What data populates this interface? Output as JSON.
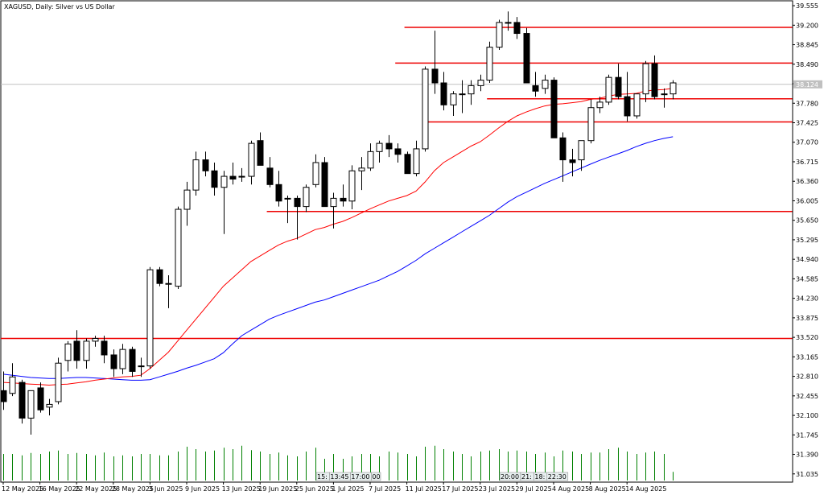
{
  "chart_data": {
    "type": "candlestick",
    "title": "XAGUSD, Daily:  Silver vs US Dollar",
    "ylim": [
      30.9,
      39.6
    ],
    "grid": false,
    "colors": {
      "up_body": "#ffffff",
      "down_body": "#000000",
      "wick": "#000000",
      "ma_fast": "#ff0000",
      "ma_slow": "#0000ff",
      "level_line": "#ee0000",
      "volume": "#008000",
      "current_price_line": "#c0c0c0"
    },
    "y_ticks": [
      "39.555",
      "39.200",
      "38.845",
      "38.490",
      "38.135",
      "37.780",
      "37.425",
      "37.070",
      "36.715",
      "36.360",
      "36.005",
      "35.650",
      "35.295",
      "34.940",
      "34.585",
      "34.230",
      "33.875",
      "33.520",
      "33.165",
      "32.810",
      "32.455",
      "32.100",
      "31.745",
      "31.390",
      "31.035"
    ],
    "current_price_label": "38.124",
    "x_labels": [
      "12 May 2025",
      "16 May 2025",
      "22 May 2025",
      "28 May 2025",
      "3 Jun 2025",
      "9 Jun 2025",
      "13 Jun 2025",
      "19 Jun 2025",
      "25 Jun 2025",
      "1 Jul 2025",
      "7 Jul 2025",
      "11 Jul 2025",
      "17 Jul 2025",
      "23 Jul 2025",
      "29 Jul 2025",
      "4 Aug 2025",
      "8 Aug 2025",
      "14 Aug 2025"
    ],
    "x_label_index": [
      0,
      4,
      8,
      12,
      16,
      20,
      24,
      28,
      32,
      36,
      40,
      44,
      48,
      52,
      56,
      60,
      64,
      68
    ],
    "time_markers": [
      {
        "index": 35,
        "labels": [
          "15:",
          "13:45",
          "17:00",
          "00"
        ]
      },
      {
        "index": 55,
        "labels": [
          "20:00",
          "21:",
          "18:",
          "22:30"
        ]
      }
    ],
    "candles": [
      {
        "o": 32.55,
        "h": 32.9,
        "l": 32.2,
        "c": 32.35
      },
      {
        "o": 32.5,
        "h": 33.05,
        "l": 32.45,
        "c": 32.8
      },
      {
        "o": 32.7,
        "h": 32.75,
        "l": 31.95,
        "c": 32.05
      },
      {
        "o": 32.05,
        "h": 32.55,
        "l": 31.75,
        "c": 32.55
      },
      {
        "o": 32.6,
        "h": 32.7,
        "l": 32.15,
        "c": 32.2
      },
      {
        "o": 32.25,
        "h": 32.4,
        "l": 32.1,
        "c": 32.3
      },
      {
        "o": 32.35,
        "h": 33.15,
        "l": 32.3,
        "c": 33.05
      },
      {
        "o": 33.1,
        "h": 33.45,
        "l": 32.9,
        "c": 33.4
      },
      {
        "o": 33.45,
        "h": 33.65,
        "l": 32.95,
        "c": 33.1
      },
      {
        "o": 33.1,
        "h": 33.5,
        "l": 32.95,
        "c": 33.45
      },
      {
        "o": 33.45,
        "h": 33.55,
        "l": 33.35,
        "c": 33.5
      },
      {
        "o": 33.45,
        "h": 33.55,
        "l": 33.05,
        "c": 33.2
      },
      {
        "o": 33.2,
        "h": 33.3,
        "l": 32.8,
        "c": 32.95
      },
      {
        "o": 32.95,
        "h": 33.4,
        "l": 32.85,
        "c": 33.3
      },
      {
        "o": 33.3,
        "h": 33.35,
        "l": 32.8,
        "c": 32.9
      },
      {
        "o": 33.0,
        "h": 33.15,
        "l": 32.8,
        "c": 33.0
      },
      {
        "o": 33.0,
        "h": 34.8,
        "l": 32.95,
        "c": 34.75
      },
      {
        "o": 34.75,
        "h": 34.8,
        "l": 34.45,
        "c": 34.5
      },
      {
        "o": 34.5,
        "h": 34.65,
        "l": 34.05,
        "c": 34.5
      },
      {
        "o": 34.45,
        "h": 35.9,
        "l": 34.4,
        "c": 35.85
      },
      {
        "o": 35.85,
        "h": 36.35,
        "l": 35.55,
        "c": 36.2
      },
      {
        "o": 36.2,
        "h": 36.9,
        "l": 36.1,
        "c": 36.75
      },
      {
        "o": 36.75,
        "h": 36.9,
        "l": 36.45,
        "c": 36.55
      },
      {
        "o": 36.55,
        "h": 36.7,
        "l": 36.1,
        "c": 36.25
      },
      {
        "o": 36.25,
        "h": 36.55,
        "l": 35.4,
        "c": 36.45
      },
      {
        "o": 36.45,
        "h": 36.7,
        "l": 36.3,
        "c": 36.4
      },
      {
        "o": 36.45,
        "h": 36.6,
        "l": 36.35,
        "c": 36.45
      },
      {
        "o": 36.45,
        "h": 37.1,
        "l": 36.3,
        "c": 37.05
      },
      {
        "o": 37.1,
        "h": 37.25,
        "l": 36.65,
        "c": 36.65
      },
      {
        "o": 36.6,
        "h": 36.8,
        "l": 36.25,
        "c": 36.3
      },
      {
        "o": 36.3,
        "h": 36.55,
        "l": 35.9,
        "c": 36.0
      },
      {
        "o": 36.05,
        "h": 36.1,
        "l": 35.6,
        "c": 36.05
      },
      {
        "o": 36.05,
        "h": 36.1,
        "l": 35.3,
        "c": 35.9
      },
      {
        "o": 35.9,
        "h": 36.3,
        "l": 35.8,
        "c": 36.25
      },
      {
        "o": 36.3,
        "h": 36.85,
        "l": 36.25,
        "c": 36.7
      },
      {
        "o": 36.7,
        "h": 36.8,
        "l": 35.9,
        "c": 35.9
      },
      {
        "o": 35.9,
        "h": 36.15,
        "l": 35.5,
        "c": 36.05
      },
      {
        "o": 36.05,
        "h": 36.3,
        "l": 35.9,
        "c": 36.0
      },
      {
        "o": 36.0,
        "h": 36.65,
        "l": 35.85,
        "c": 36.55
      },
      {
        "o": 36.55,
        "h": 36.8,
        "l": 36.2,
        "c": 36.6
      },
      {
        "o": 36.6,
        "h": 37.05,
        "l": 36.55,
        "c": 36.9
      },
      {
        "o": 36.9,
        "h": 37.1,
        "l": 36.7,
        "c": 37.05
      },
      {
        "o": 37.05,
        "h": 37.2,
        "l": 36.8,
        "c": 36.95
      },
      {
        "o": 36.95,
        "h": 37.05,
        "l": 36.7,
        "c": 36.85
      },
      {
        "o": 36.85,
        "h": 36.9,
        "l": 36.5,
        "c": 36.5
      },
      {
        "o": 36.5,
        "h": 37.1,
        "l": 36.45,
        "c": 36.95
      },
      {
        "o": 36.95,
        "h": 38.45,
        "l": 36.9,
        "c": 38.4
      },
      {
        "o": 38.4,
        "h": 39.1,
        "l": 37.95,
        "c": 38.15
      },
      {
        "o": 38.15,
        "h": 38.35,
        "l": 37.65,
        "c": 37.75
      },
      {
        "o": 37.75,
        "h": 38.0,
        "l": 37.55,
        "c": 37.95
      },
      {
        "o": 37.95,
        "h": 38.2,
        "l": 37.6,
        "c": 37.95
      },
      {
        "o": 37.95,
        "h": 38.2,
        "l": 37.75,
        "c": 38.1
      },
      {
        "o": 38.1,
        "h": 38.3,
        "l": 38.0,
        "c": 38.2
      },
      {
        "o": 38.2,
        "h": 38.9,
        "l": 38.15,
        "c": 38.8
      },
      {
        "o": 38.8,
        "h": 39.3,
        "l": 38.75,
        "c": 39.25
      },
      {
        "o": 39.25,
        "h": 39.45,
        "l": 39.1,
        "c": 39.25
      },
      {
        "o": 39.25,
        "h": 39.35,
        "l": 38.95,
        "c": 39.05
      },
      {
        "o": 39.05,
        "h": 39.15,
        "l": 38.15,
        "c": 38.15
      },
      {
        "o": 38.1,
        "h": 38.35,
        "l": 37.9,
        "c": 38.0
      },
      {
        "o": 38.05,
        "h": 38.3,
        "l": 37.95,
        "c": 38.2
      },
      {
        "o": 38.2,
        "h": 38.25,
        "l": 37.15,
        "c": 37.15
      },
      {
        "o": 37.15,
        "h": 37.25,
        "l": 36.35,
        "c": 36.75
      },
      {
        "o": 36.75,
        "h": 36.95,
        "l": 36.45,
        "c": 36.7
      },
      {
        "o": 36.75,
        "h": 37.1,
        "l": 36.55,
        "c": 37.1
      },
      {
        "o": 37.1,
        "h": 37.85,
        "l": 37.05,
        "c": 37.7
      },
      {
        "o": 37.7,
        "h": 37.9,
        "l": 37.6,
        "c": 37.8
      },
      {
        "o": 37.8,
        "h": 38.3,
        "l": 37.75,
        "c": 38.25
      },
      {
        "o": 38.25,
        "h": 38.5,
        "l": 37.85,
        "c": 37.9
      },
      {
        "o": 37.9,
        "h": 38.35,
        "l": 37.45,
        "c": 37.55
      },
      {
        "o": 37.55,
        "h": 37.95,
        "l": 37.5,
        "c": 37.95
      },
      {
        "o": 37.95,
        "h": 38.55,
        "l": 37.8,
        "c": 38.5
      },
      {
        "o": 38.5,
        "h": 38.65,
        "l": 37.85,
        "c": 37.9
      },
      {
        "o": 37.95,
        "h": 38.05,
        "l": 37.7,
        "c": 37.95
      },
      {
        "o": 37.95,
        "h": 38.2,
        "l": 37.85,
        "c": 38.15
      }
    ],
    "ma_fast": [
      32.7,
      32.69,
      32.68,
      32.67,
      32.66,
      32.65,
      32.66,
      32.67,
      32.69,
      32.71,
      32.74,
      32.76,
      32.78,
      32.8,
      32.81,
      32.83,
      32.95,
      33.1,
      33.25,
      33.45,
      33.65,
      33.85,
      34.05,
      34.25,
      34.45,
      34.6,
      34.75,
      34.9,
      35.0,
      35.1,
      35.2,
      35.27,
      35.32,
      35.4,
      35.48,
      35.52,
      35.58,
      35.63,
      35.7,
      35.78,
      35.86,
      35.93,
      36.0,
      36.05,
      36.1,
      36.18,
      36.35,
      36.55,
      36.7,
      36.8,
      36.9,
      37.0,
      37.08,
      37.2,
      37.33,
      37.45,
      37.55,
      37.62,
      37.68,
      37.73,
      37.76,
      37.77,
      37.79,
      37.81,
      37.85,
      37.87,
      37.91,
      37.94,
      37.95,
      37.96,
      38.0,
      38.02,
      38.03,
      38.05
    ],
    "ma_slow": [
      32.85,
      32.83,
      32.81,
      32.79,
      32.78,
      32.77,
      32.77,
      32.78,
      32.79,
      32.79,
      32.78,
      32.77,
      32.76,
      32.75,
      32.74,
      32.74,
      32.75,
      32.8,
      32.85,
      32.9,
      32.96,
      33.01,
      33.07,
      33.13,
      33.24,
      33.4,
      33.55,
      33.65,
      33.75,
      33.85,
      33.92,
      33.98,
      34.04,
      34.1,
      34.16,
      34.2,
      34.26,
      34.32,
      34.38,
      34.44,
      34.5,
      34.56,
      34.64,
      34.72,
      34.82,
      34.92,
      35.04,
      35.14,
      35.24,
      35.34,
      35.44,
      35.54,
      35.64,
      35.74,
      35.86,
      35.98,
      36.08,
      36.16,
      36.24,
      36.32,
      36.39,
      36.46,
      36.53,
      36.6,
      36.67,
      36.74,
      36.8,
      36.86,
      36.92,
      36.99,
      37.05,
      37.1,
      37.14,
      37.17
    ],
    "volume": [
      0.55,
      0.55,
      0.52,
      0.57,
      0.55,
      0.6,
      0.62,
      0.55,
      0.57,
      0.55,
      0.52,
      0.58,
      0.5,
      0.52,
      0.5,
      0.55,
      0.55,
      0.52,
      0.52,
      0.6,
      0.7,
      0.65,
      0.6,
      0.62,
      0.68,
      0.65,
      0.72,
      0.63,
      0.6,
      0.55,
      0.58,
      0.52,
      0.5,
      0.6,
      0.68,
      0.45,
      0.55,
      0.45,
      0.5,
      0.55,
      0.55,
      0.5,
      0.6,
      0.58,
      0.55,
      0.5,
      0.7,
      0.72,
      0.65,
      0.6,
      0.55,
      0.5,
      0.6,
      0.62,
      0.65,
      0.6,
      0.62,
      0.6,
      0.55,
      0.58,
      0.5,
      0.62,
      0.6,
      0.55,
      0.58,
      0.58,
      0.65,
      0.68,
      0.6,
      0.55,
      0.58,
      0.6,
      0.55,
      0.18
    ],
    "levels": [
      {
        "value": 39.16,
        "from": 44
      },
      {
        "value": 38.51,
        "from": 43
      },
      {
        "value": 37.86,
        "from": 53
      },
      {
        "value": 37.44,
        "from": 46
      },
      {
        "value": 35.81,
        "from": 29
      },
      {
        "value": 33.5,
        "from": 0
      }
    ],
    "current_price": 38.124
  }
}
